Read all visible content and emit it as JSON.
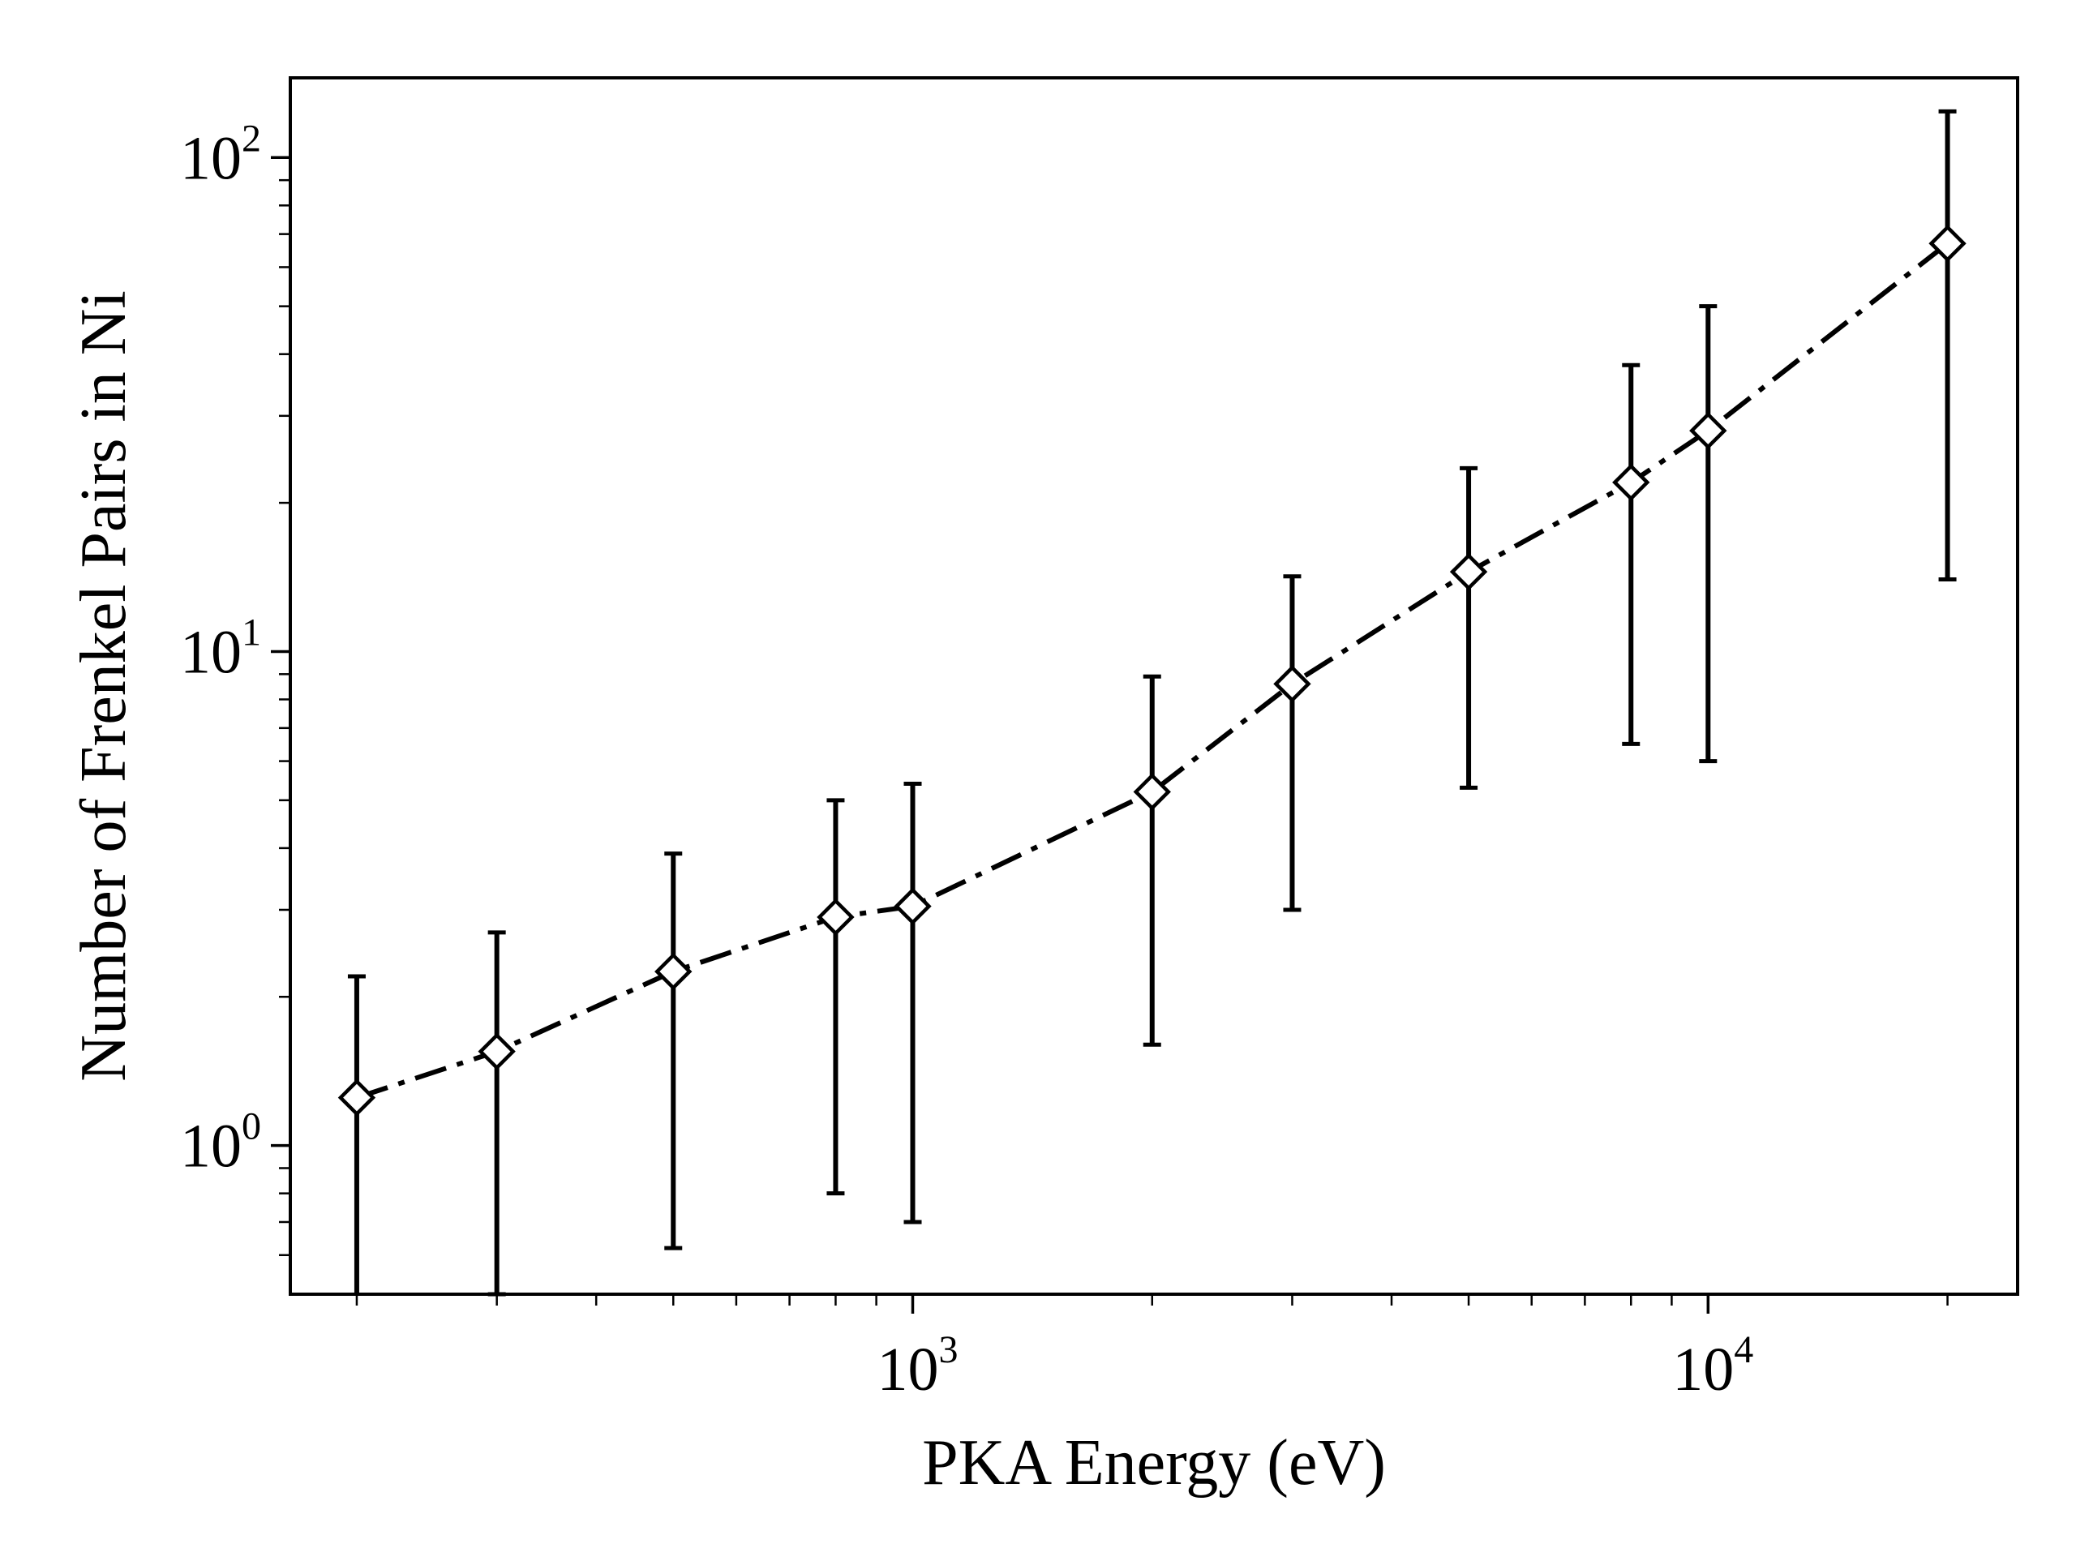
{
  "chart_data": {
    "type": "scatter",
    "title": "",
    "xlabel": "PKA Energy (eV)",
    "ylabel": "Number of Frenkel Pairs in Ni",
    "xscale": "log",
    "yscale": "log",
    "xlim": [
      165,
      24500
    ],
    "ylim": [
      0.5,
      145
    ],
    "grid": false,
    "line_style": "dash-dot",
    "marker": "diamond-open",
    "color": "#000000",
    "x_major_ticks": [
      {
        "value": 1000,
        "base": "10",
        "exp": "3"
      },
      {
        "value": 10000,
        "base": "10",
        "exp": "4"
      }
    ],
    "y_major_ticks": [
      {
        "value": 1,
        "base": "10",
        "exp": "0"
      },
      {
        "value": 10,
        "base": "10",
        "exp": "1"
      },
      {
        "value": 100,
        "base": "10",
        "exp": "2"
      }
    ],
    "series": [
      {
        "x": [
          200,
          300,
          500,
          800,
          1000,
          2000,
          3000,
          5000,
          8000,
          10000,
          20000
        ],
        "y": [
          1.25,
          1.55,
          2.25,
          2.9,
          3.05,
          5.2,
          8.6,
          14.5,
          22,
          28,
          67
        ],
        "yerr_low": [
          0.4,
          0.5,
          0.62,
          0.8,
          0.7,
          1.6,
          3.0,
          5.3,
          6.5,
          6.0,
          14
        ],
        "yerr_high": [
          2.2,
          2.7,
          3.9,
          5.0,
          5.4,
          8.9,
          14.2,
          23.5,
          38,
          50,
          124
        ]
      }
    ]
  }
}
